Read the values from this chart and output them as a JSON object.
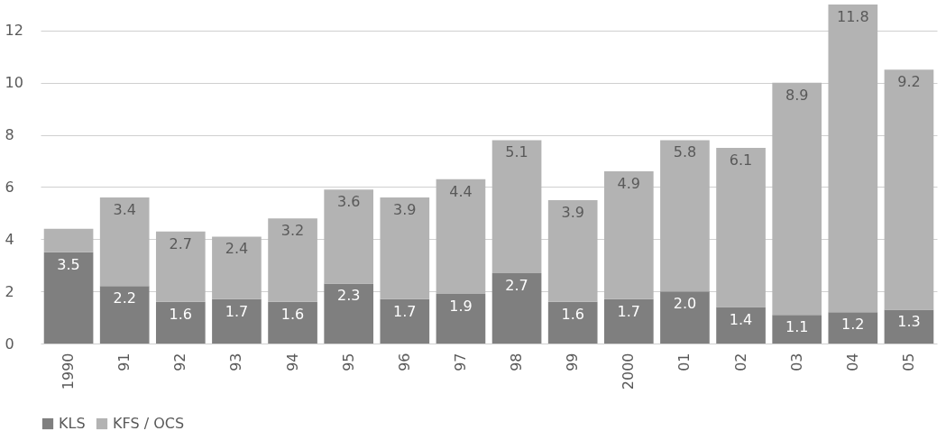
{
  "chart_data": {
    "type": "bar",
    "stacked": true,
    "categories": [
      "1990",
      "91",
      "92",
      "93",
      "94",
      "95",
      "96",
      "97",
      "98",
      "99",
      "2000",
      "01",
      "02",
      "03",
      "04",
      "05"
    ],
    "series": [
      {
        "name": "KLS",
        "color": "#7f7f7f",
        "values": [
          3.5,
          2.2,
          1.6,
          1.7,
          1.6,
          2.3,
          1.7,
          1.9,
          2.7,
          1.6,
          1.7,
          2.0,
          1.4,
          1.1,
          1.2,
          1.3
        ],
        "value_labels": [
          "3.5",
          "2.2",
          "1.6",
          "1.7",
          "1.6",
          "2.3",
          "1.7",
          "1.9",
          "2.7",
          "1.6",
          "1.7",
          "2.0",
          "1.4",
          "1.1",
          "1.2",
          "1.3"
        ]
      },
      {
        "name": "KFS / OCS",
        "color": "#b3b3b3",
        "values": [
          0.9,
          3.4,
          2.7,
          2.4,
          3.2,
          3.6,
          3.9,
          4.4,
          5.1,
          3.9,
          4.9,
          5.8,
          6.1,
          8.9,
          11.8,
          9.2
        ],
        "value_labels": [
          null,
          "3.4",
          "2.7",
          "2.4",
          "3.2",
          "3.6",
          "3.9",
          "4.4",
          "5.1",
          "3.9",
          "4.9",
          "5.8",
          "6.1",
          "8.9",
          "11.8",
          "9.2"
        ]
      }
    ],
    "ylim": [
      0,
      13
    ],
    "yticks": [
      0,
      2,
      4,
      6,
      8,
      10,
      12
    ],
    "grid": "y",
    "legend": "bottom"
  }
}
